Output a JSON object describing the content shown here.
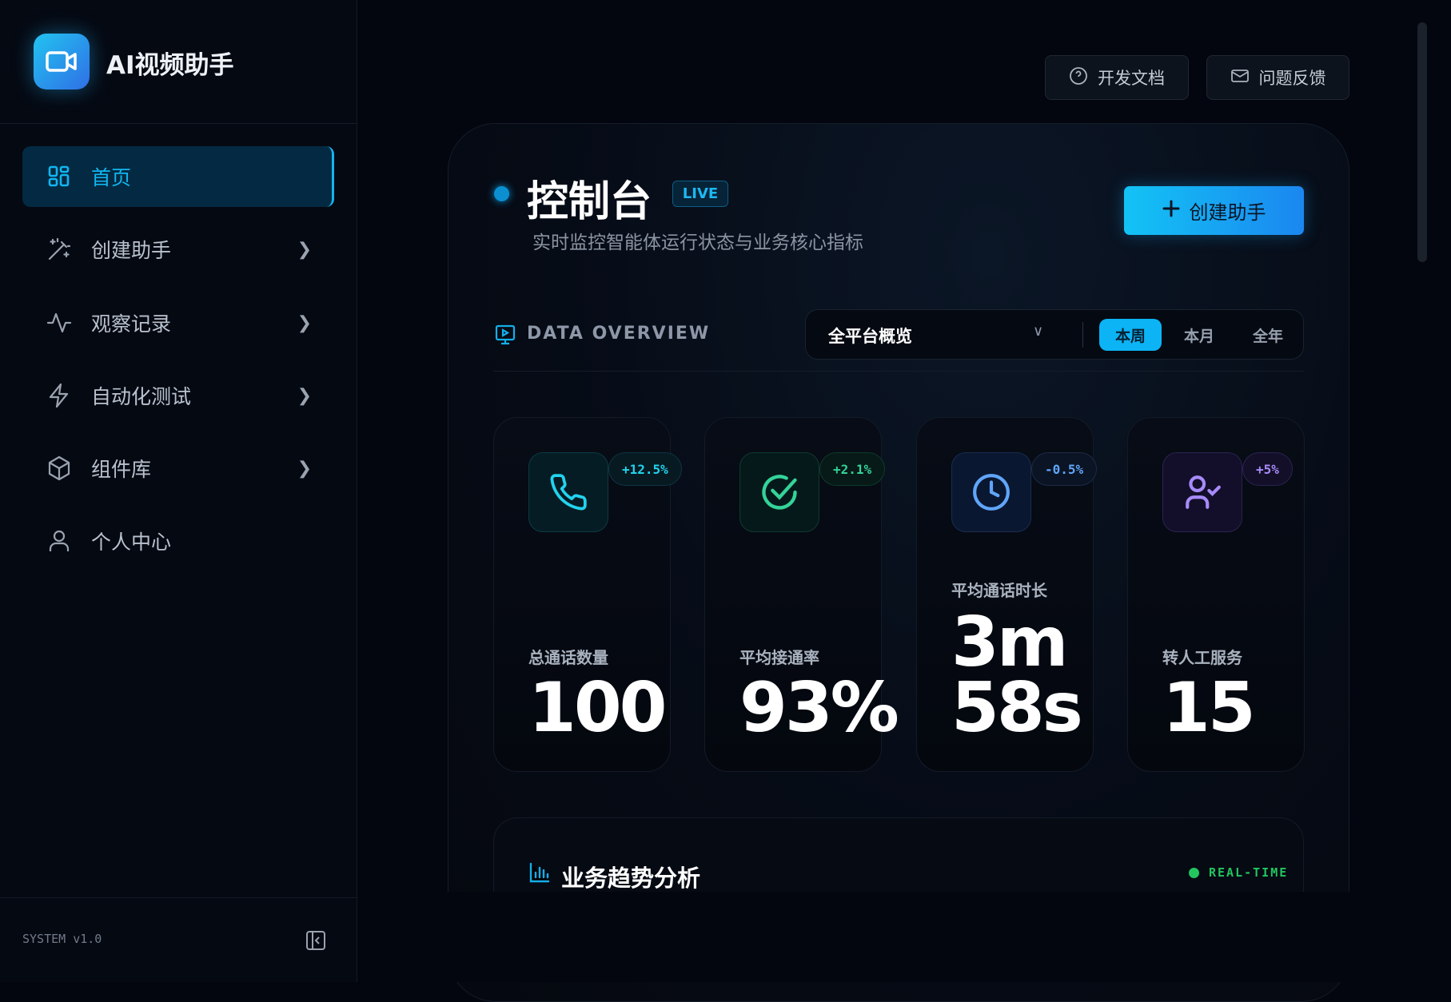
{
  "app": {
    "title": "AI视频助手",
    "version": "SYSTEM v1.0"
  },
  "sidebar": {
    "items": [
      {
        "label": "首页",
        "icon": "grid-icon",
        "active": true
      },
      {
        "label": "创建助手",
        "icon": "magic-wand-icon"
      },
      {
        "label": "观察记录",
        "icon": "activity-icon"
      },
      {
        "label": "自动化测试",
        "icon": "zap-icon"
      },
      {
        "label": "组件库",
        "icon": "box-icon"
      },
      {
        "label": "个人中心",
        "icon": "user-icon"
      }
    ]
  },
  "header": {
    "docs_label": "开发文档",
    "feedback_label": "问题反馈"
  },
  "main": {
    "title": "控制台",
    "live": "LIVE",
    "subtitle": "实时监控智能体运行状态与业务核心指标",
    "create_label": "创建助手",
    "overview_label": "DATA OVERVIEW",
    "scope_select": "全平台概览",
    "periods": [
      "本周",
      "本月",
      "全年"
    ],
    "active_period": "本周",
    "cards": [
      {
        "label": "总通话数量",
        "value": "100",
        "change": "+12.5%",
        "color": "#22d3ee",
        "icon": "phone-icon"
      },
      {
        "label": "平均接通率",
        "value": "93%",
        "change": "+2.1%",
        "color": "#34d399",
        "icon": "check-circle-icon"
      },
      {
        "label": "平均通话时长",
        "value": "3m",
        "value2": "58s",
        "change": "-0.5%",
        "color": "#60a5fa",
        "icon": "clock-icon"
      },
      {
        "label": "转人工服务",
        "value": "15",
        "change": "+5%",
        "color": "#a78bfa",
        "icon": "user-check-icon"
      }
    ],
    "trend": {
      "title": "业务趋势分析",
      "status": "REAL-TIME"
    }
  },
  "colors": {
    "accent": "#0cb4f5",
    "bg": "#03060e",
    "success": "#22c55e"
  }
}
